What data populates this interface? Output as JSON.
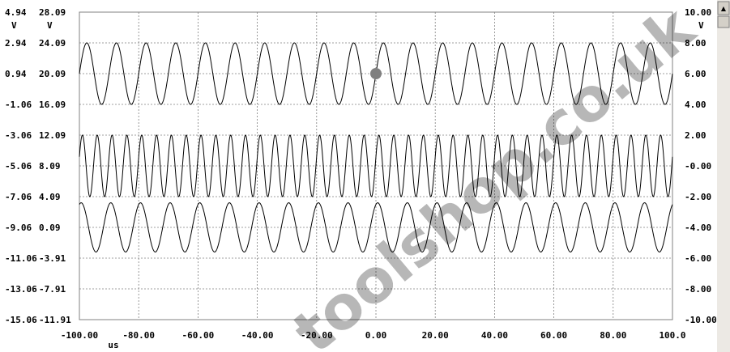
{
  "left_axis_a": {
    "unit": "V",
    "ticks": [
      "4.94",
      "2.94",
      "0.94",
      "-1.06",
      "-3.06",
      "-5.06",
      "-7.06",
      "-9.06",
      "-11.06",
      "-13.06",
      "-15.06"
    ]
  },
  "left_axis_b": {
    "unit": "V",
    "ticks": [
      "28.09",
      "24.09",
      "20.09",
      "16.09",
      "12.09",
      "8.09",
      "4.09",
      "0.09",
      "-3.91",
      "-7.91",
      "-11.91"
    ]
  },
  "right_axis": {
    "unit": "V",
    "ticks": [
      "10.00",
      "8.00",
      "6.00",
      "4.00",
      "2.00",
      "-0.00",
      "-2.00",
      "-4.00",
      "-6.00",
      "-8.00",
      "-10.00"
    ]
  },
  "x_axis": {
    "unit": "us",
    "ticks": [
      "-100.00",
      "-80.00",
      "-60.00",
      "-40.00",
      "-20.00",
      "0.00",
      "20.00",
      "40.00",
      "60.00",
      "80.00",
      "100.0"
    ]
  },
  "watermark": "toolshop.co.uk",
  "scrollbar": {
    "up_arrow": "▲"
  },
  "chart_data": {
    "type": "line",
    "xlim": [
      -100,
      100
    ],
    "ylim": [
      -10,
      10
    ],
    "grid": true,
    "series": [
      {
        "cycles": 20,
        "amplitude": 2.0,
        "offset": 6.0,
        "phase": 0.0
      },
      {
        "cycles": 40,
        "amplitude": 2.0,
        "offset": 0.0,
        "phase": 0.3
      },
      {
        "cycles": 20,
        "amplitude": 1.6,
        "offset": -4.0,
        "phase": 1.2
      }
    ],
    "marker": {
      "x": 0.0,
      "y": 6.0,
      "color": "#808080"
    }
  }
}
